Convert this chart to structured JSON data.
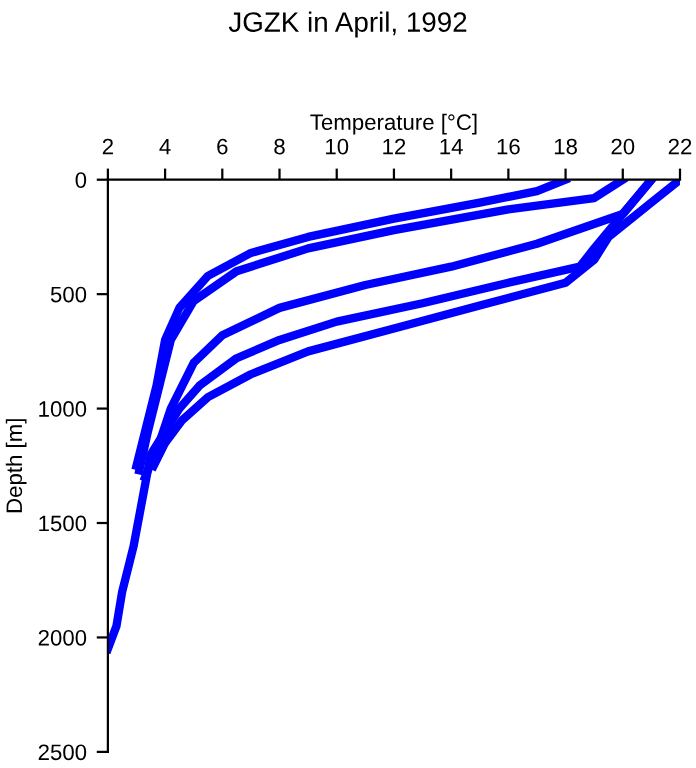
{
  "chart_data": {
    "type": "line",
    "title": "JGZK in April, 1992",
    "xlabel": "Temperature [°C]",
    "ylabel": "Depth [m]",
    "xlim": [
      2,
      22
    ],
    "ylim": [
      2500,
      0
    ],
    "xticks": [
      2,
      4,
      6,
      8,
      10,
      12,
      14,
      16,
      18,
      20,
      22
    ],
    "yticks": [
      0,
      500,
      1000,
      1500,
      2000,
      2500
    ],
    "grid": false,
    "marker": "none",
    "line_style": "solid",
    "series": [
      {
        "color": "#0000ff",
        "x": [
          18,
          17,
          15,
          12,
          9,
          7,
          5.5,
          4.5,
          4,
          3.7,
          3.3,
          3
        ],
        "values": [
          0,
          50,
          100,
          170,
          250,
          320,
          420,
          560,
          700,
          900,
          1100,
          1250
        ]
      },
      {
        "color": "#0000ff",
        "x": [
          20,
          19,
          16,
          12,
          9,
          6.5,
          5,
          4.2,
          3.8,
          3.4,
          3.1
        ],
        "values": [
          0,
          80,
          130,
          220,
          300,
          400,
          530,
          700,
          900,
          1100,
          1270
        ]
      },
      {
        "color": "#0000ff",
        "x": [
          21,
          20,
          17,
          14,
          11,
          8,
          6,
          5,
          4.2,
          3.8,
          3.3
        ],
        "values": [
          0,
          150,
          280,
          380,
          460,
          560,
          680,
          800,
          1000,
          1150,
          1300
        ]
      },
      {
        "color": "#0000ff",
        "x": [
          21,
          20,
          19,
          18.5,
          16,
          13,
          10,
          8,
          6.5,
          5.2,
          4.5,
          4,
          3.5,
          3.2,
          2.9,
          2.5,
          2.3,
          2.0
        ],
        "values": [
          0,
          150,
          300,
          380,
          450,
          540,
          620,
          700,
          780,
          900,
          1000,
          1100,
          1200,
          1400,
          1600,
          1800,
          1950,
          2050
        ]
      },
      {
        "color": "#0000ff",
        "x": [
          22,
          21,
          19.5,
          19,
          18,
          15,
          12,
          9,
          7,
          5.5,
          4.6,
          4,
          3.6
        ],
        "values": [
          0,
          100,
          250,
          350,
          450,
          550,
          650,
          750,
          850,
          950,
          1050,
          1150,
          1250
        ]
      }
    ]
  }
}
